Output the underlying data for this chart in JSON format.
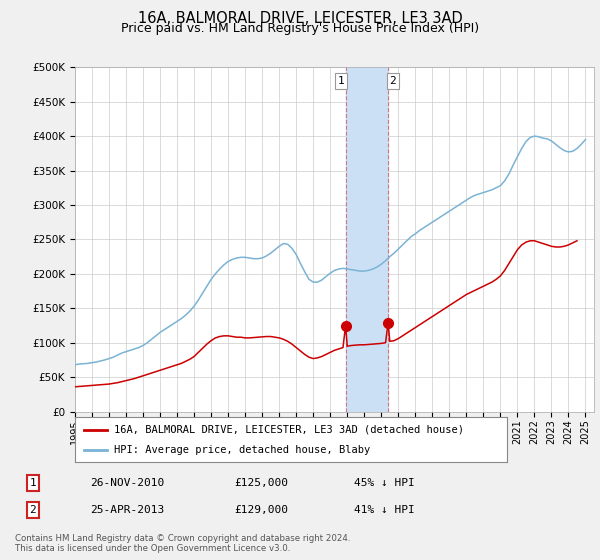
{
  "title": "16A, BALMORAL DRIVE, LEICESTER, LE3 3AD",
  "subtitle": "Price paid vs. HM Land Registry's House Price Index (HPI)",
  "title_fontsize": 10.5,
  "subtitle_fontsize": 9,
  "xlim": [
    1995.0,
    2025.5
  ],
  "ylim": [
    0,
    500000
  ],
  "yticks": [
    0,
    50000,
    100000,
    150000,
    200000,
    250000,
    300000,
    350000,
    400000,
    450000,
    500000
  ],
  "ytick_labels": [
    "£0",
    "£50K",
    "£100K",
    "£150K",
    "£200K",
    "£250K",
    "£300K",
    "£350K",
    "£400K",
    "£450K",
    "£500K"
  ],
  "xticks": [
    1995,
    1996,
    1997,
    1998,
    1999,
    2000,
    2001,
    2002,
    2003,
    2004,
    2005,
    2006,
    2007,
    2008,
    2009,
    2010,
    2011,
    2012,
    2013,
    2014,
    2015,
    2016,
    2017,
    2018,
    2019,
    2020,
    2021,
    2022,
    2023,
    2024,
    2025
  ],
  "hpi_x": [
    1995.0,
    1995.25,
    1995.5,
    1995.75,
    1996.0,
    1996.25,
    1996.5,
    1996.75,
    1997.0,
    1997.25,
    1997.5,
    1997.75,
    1998.0,
    1998.25,
    1998.5,
    1998.75,
    1999.0,
    1999.25,
    1999.5,
    1999.75,
    2000.0,
    2000.25,
    2000.5,
    2000.75,
    2001.0,
    2001.25,
    2001.5,
    2001.75,
    2002.0,
    2002.25,
    2002.5,
    2002.75,
    2003.0,
    2003.25,
    2003.5,
    2003.75,
    2004.0,
    2004.25,
    2004.5,
    2004.75,
    2005.0,
    2005.25,
    2005.5,
    2005.75,
    2006.0,
    2006.25,
    2006.5,
    2006.75,
    2007.0,
    2007.25,
    2007.5,
    2007.75,
    2008.0,
    2008.25,
    2008.5,
    2008.75,
    2009.0,
    2009.25,
    2009.5,
    2009.75,
    2010.0,
    2010.25,
    2010.5,
    2010.75,
    2011.0,
    2011.25,
    2011.5,
    2011.75,
    2012.0,
    2012.25,
    2012.5,
    2012.75,
    2013.0,
    2013.25,
    2013.5,
    2013.75,
    2014.0,
    2014.25,
    2014.5,
    2014.75,
    2015.0,
    2015.25,
    2015.5,
    2015.75,
    2016.0,
    2016.25,
    2016.5,
    2016.75,
    2017.0,
    2017.25,
    2017.5,
    2017.75,
    2018.0,
    2018.25,
    2018.5,
    2018.75,
    2019.0,
    2019.25,
    2019.5,
    2019.75,
    2020.0,
    2020.25,
    2020.5,
    2020.75,
    2021.0,
    2021.25,
    2021.5,
    2021.75,
    2022.0,
    2022.25,
    2022.5,
    2022.75,
    2023.0,
    2023.25,
    2023.5,
    2023.75,
    2024.0,
    2024.25,
    2024.5,
    2024.75,
    2025.0
  ],
  "hpi_y": [
    68000,
    69000,
    69500,
    70000,
    71000,
    72000,
    73500,
    75000,
    77000,
    79000,
    82000,
    85000,
    87000,
    89000,
    91000,
    93000,
    96000,
    100000,
    105000,
    110000,
    115000,
    119000,
    123000,
    127000,
    131000,
    135000,
    140000,
    146000,
    153000,
    162000,
    172000,
    182000,
    192000,
    200000,
    207000,
    213000,
    218000,
    221000,
    223000,
    224000,
    224000,
    223000,
    222000,
    222000,
    223000,
    226000,
    230000,
    235000,
    240000,
    244000,
    243000,
    237000,
    228000,
    215000,
    203000,
    192000,
    188000,
    188000,
    191000,
    196000,
    201000,
    205000,
    207000,
    208000,
    207000,
    206000,
    205000,
    204000,
    204000,
    205000,
    207000,
    210000,
    214000,
    219000,
    225000,
    230000,
    236000,
    242000,
    248000,
    254000,
    258000,
    263000,
    267000,
    271000,
    275000,
    279000,
    283000,
    287000,
    291000,
    295000,
    299000,
    303000,
    307000,
    311000,
    314000,
    316000,
    318000,
    320000,
    322000,
    325000,
    328000,
    335000,
    345000,
    358000,
    370000,
    382000,
    392000,
    398000,
    400000,
    399000,
    397000,
    396000,
    393000,
    388000,
    383000,
    379000,
    377000,
    378000,
    382000,
    388000,
    395000
  ],
  "property_x": [
    1995.0,
    1995.25,
    1995.5,
    1995.75,
    1996.0,
    1996.25,
    1996.5,
    1996.75,
    1997.0,
    1997.25,
    1997.5,
    1997.75,
    1998.0,
    1998.25,
    1998.5,
    1998.75,
    1999.0,
    1999.25,
    1999.5,
    1999.75,
    2000.0,
    2000.25,
    2000.5,
    2000.75,
    2001.0,
    2001.25,
    2001.5,
    2001.75,
    2002.0,
    2002.25,
    2002.5,
    2002.75,
    2003.0,
    2003.25,
    2003.5,
    2003.75,
    2004.0,
    2004.25,
    2004.5,
    2004.75,
    2005.0,
    2005.25,
    2005.5,
    2005.75,
    2006.0,
    2006.25,
    2006.5,
    2006.75,
    2007.0,
    2007.25,
    2007.5,
    2007.75,
    2008.0,
    2008.25,
    2008.5,
    2008.75,
    2009.0,
    2009.25,
    2009.5,
    2009.75,
    2010.0,
    2010.25,
    2010.5,
    2010.75,
    2010.9,
    2011.0,
    2011.25,
    2011.5,
    2011.75,
    2012.0,
    2012.25,
    2012.5,
    2012.75,
    2013.0,
    2013.25,
    2013.4,
    2013.5,
    2013.75,
    2014.0,
    2014.25,
    2014.5,
    2014.75,
    2015.0,
    2015.25,
    2015.5,
    2015.75,
    2016.0,
    2016.25,
    2016.5,
    2016.75,
    2017.0,
    2017.25,
    2017.5,
    2017.75,
    2018.0,
    2018.25,
    2018.5,
    2018.75,
    2019.0,
    2019.25,
    2019.5,
    2019.75,
    2020.0,
    2020.25,
    2020.5,
    2020.75,
    2021.0,
    2021.25,
    2021.5,
    2021.75,
    2022.0,
    2022.25,
    2022.5,
    2022.75,
    2023.0,
    2023.25,
    2023.5,
    2023.75,
    2024.0,
    2024.25,
    2024.5
  ],
  "property_y": [
    36000,
    36500,
    37000,
    37500,
    38000,
    38500,
    39000,
    39500,
    40000,
    41000,
    42000,
    43500,
    45000,
    46500,
    48000,
    50000,
    52000,
    54000,
    56000,
    58000,
    60000,
    62000,
    64000,
    66000,
    68000,
    70000,
    73000,
    76000,
    80000,
    86000,
    92000,
    98000,
    103000,
    107000,
    109000,
    110000,
    110000,
    109000,
    108000,
    108000,
    107000,
    107000,
    107500,
    108000,
    108500,
    109000,
    109000,
    108000,
    107000,
    105000,
    102000,
    98000,
    93000,
    88000,
    83000,
    79000,
    77000,
    78000,
    80000,
    83000,
    86000,
    89000,
    91000,
    93000,
    125000,
    95000,
    96000,
    96500,
    97000,
    97000,
    97500,
    98000,
    98500,
    99000,
    100000,
    129000,
    102000,
    103000,
    106000,
    110000,
    114000,
    118000,
    122000,
    126000,
    130000,
    134000,
    138000,
    142000,
    146000,
    150000,
    154000,
    158000,
    162000,
    166000,
    170000,
    173000,
    176000,
    179000,
    182000,
    185000,
    188000,
    192000,
    197000,
    205000,
    215000,
    225000,
    235000,
    242000,
    246000,
    248000,
    248000,
    246000,
    244000,
    242000,
    240000,
    239000,
    239000,
    240000,
    242000,
    245000,
    248000
  ],
  "sale1_x": 2010.9,
  "sale1_y": 125000,
  "sale2_x": 2013.4,
  "sale2_y": 129000,
  "highlight_color": "#cce0f5",
  "hpi_color": "#7ab3d4",
  "property_color": "#cc0000",
  "sale_marker_color": "#cc0000",
  "sale_marker_size": 7,
  "legend_label_property": "16A, BALMORAL DRIVE, LEICESTER, LE3 3AD (detached house)",
  "legend_label_hpi": "HPI: Average price, detached house, Blaby",
  "sale1_date": "26-NOV-2010",
  "sale1_price": "£125,000",
  "sale1_hpi": "45% ↓ HPI",
  "sale2_date": "25-APR-2013",
  "sale2_price": "£129,000",
  "sale2_hpi": "41% ↓ HPI",
  "footer": "Contains HM Land Registry data © Crown copyright and database right 2024.\nThis data is licensed under the Open Government Licence v3.0.",
  "bg_color": "#f0f0f0",
  "plot_bg_color": "#ffffff",
  "grid_color": "#cccccc"
}
